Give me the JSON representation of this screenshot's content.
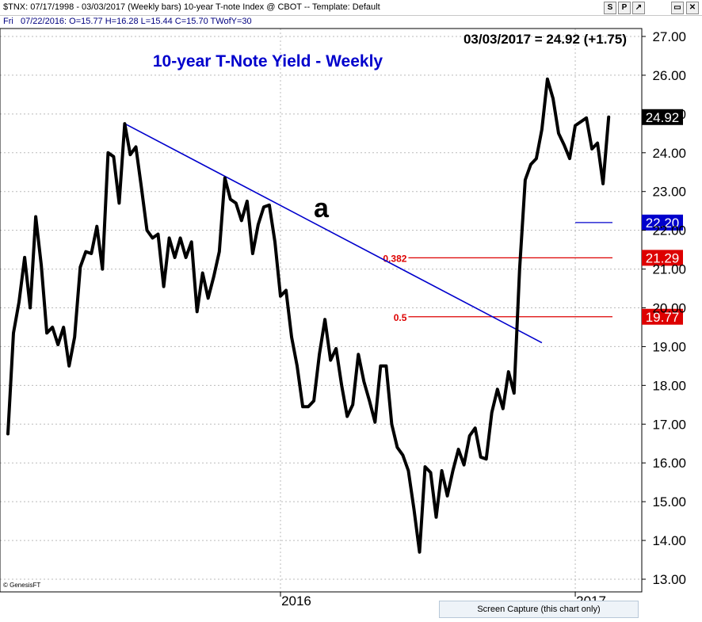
{
  "header": {
    "line1": "$TNX: 07/17/1998 - 03/03/2017  (Weekly bars)  10-year T-note Index @ CBOT  --  Template: Default",
    "line2_day": "Fri",
    "line2_values": "07/22/2016:  O=15.77  H=16.28  L=15.44  C=15.70  TWofY=30",
    "buttons": [
      "S",
      "P",
      "↗",
      "▭",
      "✕"
    ]
  },
  "summary": "03/03/2017 = 24.92 (+1.75)",
  "copyright": "© GenesisFT",
  "capture_button": "Screen Capture (this chart only)",
  "colors": {
    "price": "#000000",
    "trend": "#0000cc",
    "fib": "#dd0000",
    "support": "#0000cc",
    "title": "#0000cc"
  },
  "chart_data": {
    "type": "line",
    "title": "10-year T-Note Yield - Weekly",
    "ylim": [
      13.0,
      27.0
    ],
    "y_ticks": [
      "13.00",
      "14.00",
      "15.00",
      "16.00",
      "17.00",
      "18.00",
      "19.00",
      "20.00",
      "21.00",
      "22.00",
      "23.00",
      "24.00",
      "25.00",
      "26.00",
      "27.00"
    ],
    "x_ticks": [
      {
        "label": "2016",
        "week": 49
      },
      {
        "label": "2017",
        "week": 102
      }
    ],
    "series": [
      {
        "values": [
          16.75,
          19.35,
          20.15,
          21.3,
          20.0,
          22.35,
          21.1,
          19.35,
          19.5,
          19.05,
          19.5,
          18.5,
          19.25,
          21.05,
          21.45,
          21.4,
          22.1,
          21.0,
          24.0,
          23.9,
          22.7,
          24.75,
          23.95,
          24.15,
          23.1,
          22.0,
          21.8,
          21.9,
          20.55,
          21.8,
          21.3,
          21.8,
          21.3,
          21.7,
          19.9,
          20.9,
          20.25,
          20.8,
          21.45,
          23.35,
          22.8,
          22.7,
          22.25,
          22.75,
          21.4,
          22.15,
          22.6,
          22.65,
          21.7,
          20.3,
          20.45,
          19.25,
          18.5,
          17.45,
          17.45,
          17.6,
          18.8,
          19.7,
          18.65,
          18.95,
          18.0,
          17.2,
          17.5,
          18.8,
          18.1,
          17.6,
          17.05,
          18.5,
          18.5,
          17.0,
          16.4,
          16.2,
          15.8,
          14.8,
          13.7,
          15.9,
          15.75,
          14.6,
          15.8,
          15.15,
          15.8,
          16.35,
          15.95,
          16.7,
          16.9,
          16.15,
          16.1,
          17.3,
          17.9,
          17.4,
          18.35,
          17.8,
          21.0,
          23.3,
          23.7,
          23.85,
          24.6,
          25.9,
          25.4,
          24.5,
          24.2,
          23.85,
          24.7,
          24.8,
          24.9,
          24.1,
          24.25,
          23.2,
          24.92
        ]
      }
    ],
    "annotations": {
      "trendline_label": "a",
      "current_price_label": "24.92",
      "trendline": {
        "from": {
          "week": 21,
          "value": 24.75
        },
        "to": {
          "week": 96,
          "value": 19.1
        }
      },
      "horizontal_levels": [
        {
          "label": "",
          "value": 22.2,
          "from_week": 102,
          "axis_label": "22.20",
          "color": "#0000cc"
        },
        {
          "label": "0.382",
          "value": 21.29,
          "from_week": 72,
          "axis_label": "21.29",
          "color": "#dd0000"
        },
        {
          "label": "0.5",
          "value": 19.77,
          "from_week": 72,
          "axis_label": "19.77",
          "color": "#dd0000"
        }
      ]
    }
  }
}
